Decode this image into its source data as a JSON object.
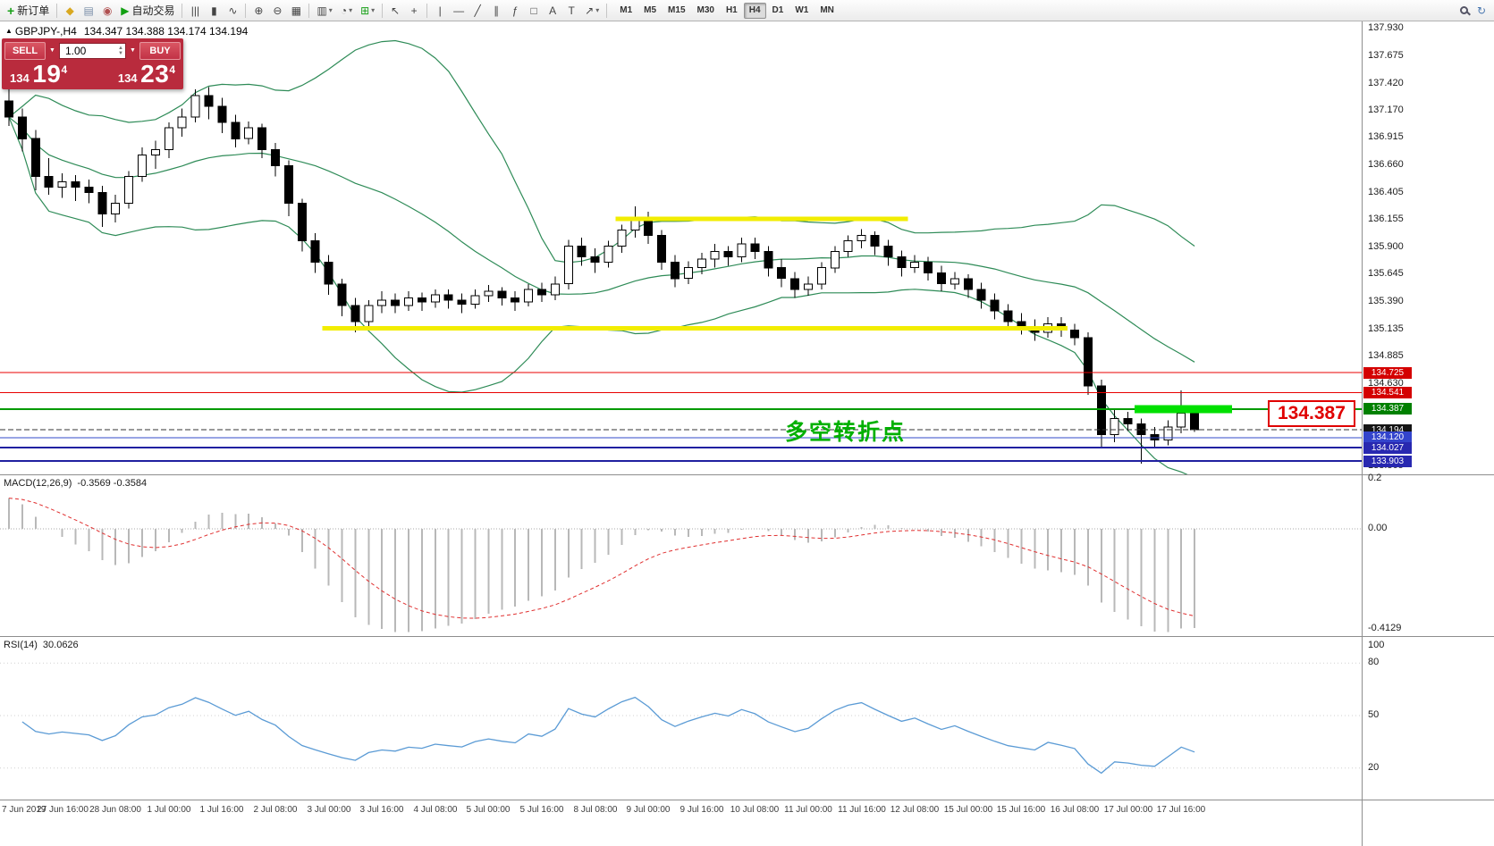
{
  "toolbar": {
    "caret_icon": "▾",
    "items": [
      {
        "name": "new-order-button",
        "icon": "+",
        "icon_color": "#18a018",
        "icon_bold": true,
        "label": "新订单"
      },
      {
        "name": "sep1",
        "sep": true
      },
      {
        "name": "marketwatch-button",
        "icon": "◆",
        "icon_color": "#d9a820"
      },
      {
        "name": "data-window-button",
        "icon": "▤",
        "icon_color": "#7a8ea8"
      },
      {
        "name": "navigator-button",
        "icon": "◉",
        "icon_color": "#b05050"
      },
      {
        "name": "autotrading-button",
        "icon": "▶",
        "icon_color": "#12a012",
        "label": "自动交易"
      },
      {
        "name": "sep2",
        "sep": true
      },
      {
        "name": "bars-chart-button",
        "icon": "|||"
      },
      {
        "name": "candles-chart-button",
        "icon": "▮"
      },
      {
        "name": "line-chart-button",
        "icon": "∿"
      },
      {
        "name": "sep3",
        "sep": true
      },
      {
        "name": "zoom-in-button",
        "icon": "⊕"
      },
      {
        "name": "zoom-out-button",
        "icon": "⊖"
      },
      {
        "name": "tile-windows-button",
        "icon": "▦"
      },
      {
        "name": "sep4",
        "sep": true
      },
      {
        "name": "new-chart-button",
        "icon": "▥",
        "caret": true
      },
      {
        "name": "profiles-button",
        "icon": "◔",
        "caret": true
      },
      {
        "name": "indicators-button",
        "icon": "⊞",
        "icon_color": "#18a018",
        "caret": true
      },
      {
        "name": "sep5",
        "sep": true
      },
      {
        "name": "cursor-button",
        "icon": "↖"
      },
      {
        "name": "crosshair-button",
        "icon": "+"
      },
      {
        "name": "sep6",
        "sep": true
      },
      {
        "name": "vertical-line-button",
        "icon": "|"
      },
      {
        "name": "horizontal-line-button",
        "icon": "—"
      },
      {
        "name": "trendline-button",
        "icon": "╱"
      },
      {
        "name": "channel-button",
        "icon": "∥"
      },
      {
        "name": "fibonacci-button",
        "icon": "ƒ"
      },
      {
        "name": "shapes-button",
        "icon": "□"
      },
      {
        "name": "text-button",
        "icon": "A"
      },
      {
        "name": "label-button",
        "icon": "T"
      },
      {
        "name": "arrows-button",
        "icon": "↗",
        "caret": true
      },
      {
        "name": "sep7",
        "sep": true
      }
    ],
    "timeframes": [
      "M1",
      "M5",
      "M15",
      "M30",
      "H1",
      "H4",
      "D1",
      "W1",
      "MN"
    ],
    "active_timeframe": "H4",
    "right_items": [
      {
        "name": "search-button",
        "icon_css": "mag"
      },
      {
        "name": "community-button",
        "icon": "↻",
        "icon_color": "#4a78b0"
      }
    ]
  },
  "symbol_bar": {
    "direction_icon": "▲",
    "symbol": "GBPJPY-,H4",
    "ohlc": "134.347 134.388 134.174 134.194"
  },
  "trade_panel": {
    "sell_label": "SELL",
    "buy_label": "BUY",
    "caret_icon": "▼",
    "spin_up_icon": "▲",
    "spin_down_icon": "▼",
    "volume": "1.00",
    "sell_price": {
      "prefix": "134 ",
      "big": "19",
      "pip": "4"
    },
    "buy_price": {
      "prefix": "134 ",
      "big": "23",
      "pip": "4"
    }
  },
  "chart_data": {
    "type": "candlestick",
    "symbol": "GBPJPY-",
    "timeframe": "H4",
    "price_axis": {
      "max": 137.99,
      "min": 133.779,
      "ticks": [
        "137.930",
        "137.675",
        "137.420",
        "137.170",
        "136.915",
        "136.660",
        "136.405",
        "136.155",
        "135.900",
        "135.645",
        "135.390",
        "135.135",
        "134.885",
        "134.630",
        "134.375",
        "134.120",
        "133.865"
      ]
    },
    "time_labels": [
      "7 Jun 2019",
      "27 Jun 16:00",
      "28 Jun 08:00",
      "1 Jul 00:00",
      "1 Jul 16:00",
      "2 Jul 08:00",
      "3 Jul 00:00",
      "3 Jul 16:00",
      "4 Jul 08:00",
      "5 Jul 00:00",
      "5 Jul 16:00",
      "8 Jul 08:00",
      "9 Jul 00:00",
      "9 Jul 16:00",
      "10 Jul 08:00",
      "11 Jul 00:00",
      "11 Jul 16:00",
      "12 Jul 08:00",
      "15 Jul 00:00",
      "15 Jul 16:00",
      "16 Jul 08:00",
      "17 Jul 00:00",
      "17 Jul 16:00"
    ],
    "candles": [
      [
        137.25,
        137.42,
        137.02,
        137.1
      ],
      [
        137.1,
        137.18,
        136.78,
        136.9
      ],
      [
        136.9,
        136.98,
        136.42,
        136.55
      ],
      [
        136.55,
        136.72,
        136.38,
        136.45
      ],
      [
        136.45,
        136.58,
        136.35,
        136.5
      ],
      [
        136.5,
        136.56,
        136.32,
        136.45
      ],
      [
        136.45,
        136.52,
        136.3,
        136.4
      ],
      [
        136.4,
        136.46,
        136.08,
        136.2
      ],
      [
        136.2,
        136.38,
        136.12,
        136.3
      ],
      [
        136.3,
        136.6,
        136.25,
        136.55
      ],
      [
        136.55,
        136.82,
        136.5,
        136.75
      ],
      [
        136.75,
        136.88,
        136.62,
        136.8
      ],
      [
        136.8,
        137.05,
        136.72,
        137.0
      ],
      [
        137.0,
        137.18,
        136.92,
        137.1
      ],
      [
        137.1,
        137.36,
        137.05,
        137.3
      ],
      [
        137.3,
        137.38,
        137.08,
        137.2
      ],
      [
        137.2,
        137.28,
        136.95,
        137.05
      ],
      [
        137.05,
        137.12,
        136.82,
        136.9
      ],
      [
        136.9,
        137.06,
        136.85,
        137.0
      ],
      [
        137.0,
        137.04,
        136.72,
        136.8
      ],
      [
        136.8,
        136.86,
        136.55,
        136.65
      ],
      [
        136.65,
        136.7,
        136.18,
        136.3
      ],
      [
        136.3,
        136.34,
        135.85,
        135.95
      ],
      [
        135.95,
        136.02,
        135.65,
        135.75
      ],
      [
        135.75,
        135.82,
        135.45,
        135.55
      ],
      [
        135.55,
        135.6,
        135.25,
        135.35
      ],
      [
        135.35,
        135.42,
        135.1,
        135.2
      ],
      [
        135.2,
        135.4,
        135.15,
        135.35
      ],
      [
        135.35,
        135.48,
        135.28,
        135.4
      ],
      [
        135.4,
        135.46,
        135.28,
        135.35
      ],
      [
        135.35,
        135.48,
        135.3,
        135.42
      ],
      [
        135.42,
        135.47,
        135.3,
        135.38
      ],
      [
        135.38,
        135.5,
        135.33,
        135.45
      ],
      [
        135.45,
        135.5,
        135.32,
        135.4
      ],
      [
        135.4,
        135.46,
        135.28,
        135.36
      ],
      [
        135.36,
        135.5,
        135.32,
        135.44
      ],
      [
        135.44,
        135.54,
        135.38,
        135.48
      ],
      [
        135.48,
        135.52,
        135.35,
        135.42
      ],
      [
        135.42,
        135.48,
        135.3,
        135.38
      ],
      [
        135.38,
        135.55,
        135.34,
        135.5
      ],
      [
        135.5,
        135.56,
        135.38,
        135.45
      ],
      [
        135.45,
        135.62,
        135.4,
        135.55
      ],
      [
        135.55,
        135.96,
        135.5,
        135.9
      ],
      [
        135.9,
        135.98,
        135.72,
        135.8
      ],
      [
        135.8,
        135.88,
        135.65,
        135.75
      ],
      [
        135.75,
        135.95,
        135.7,
        135.9
      ],
      [
        135.9,
        136.1,
        135.84,
        136.05
      ],
      [
        136.05,
        136.27,
        135.98,
        136.15
      ],
      [
        136.15,
        136.22,
        135.92,
        136.0
      ],
      [
        136.0,
        136.05,
        135.68,
        135.75
      ],
      [
        135.75,
        135.82,
        135.52,
        135.6
      ],
      [
        135.6,
        135.76,
        135.55,
        135.7
      ],
      [
        135.7,
        135.84,
        135.64,
        135.78
      ],
      [
        135.78,
        135.92,
        135.7,
        135.85
      ],
      [
        135.85,
        135.9,
        135.72,
        135.8
      ],
      [
        135.8,
        135.98,
        135.75,
        135.92
      ],
      [
        135.92,
        135.98,
        135.78,
        135.85
      ],
      [
        135.85,
        135.9,
        135.62,
        135.7
      ],
      [
        135.7,
        135.78,
        135.52,
        135.6
      ],
      [
        135.6,
        135.66,
        135.42,
        135.5
      ],
      [
        135.5,
        135.62,
        135.44,
        135.55
      ],
      [
        135.55,
        135.75,
        135.5,
        135.7
      ],
      [
        135.7,
        135.9,
        135.65,
        135.85
      ],
      [
        135.85,
        136.0,
        135.8,
        135.95
      ],
      [
        135.95,
        136.06,
        135.88,
        136.0
      ],
      [
        136.0,
        136.04,
        135.82,
        135.9
      ],
      [
        135.9,
        135.96,
        135.72,
        135.8
      ],
      [
        135.8,
        135.86,
        135.62,
        135.7
      ],
      [
        135.7,
        135.82,
        135.65,
        135.75
      ],
      [
        135.75,
        135.8,
        135.58,
        135.65
      ],
      [
        135.65,
        135.72,
        135.48,
        135.55
      ],
      [
        135.55,
        135.66,
        135.5,
        135.6
      ],
      [
        135.6,
        135.64,
        135.42,
        135.5
      ],
      [
        135.5,
        135.56,
        135.32,
        135.4
      ],
      [
        135.4,
        135.46,
        135.22,
        135.3
      ],
      [
        135.3,
        135.36,
        135.12,
        135.2
      ],
      [
        135.2,
        135.28,
        135.08,
        135.15
      ],
      [
        135.15,
        135.22,
        135.02,
        135.1
      ],
      [
        135.1,
        135.24,
        135.05,
        135.18
      ],
      [
        135.18,
        135.24,
        135.06,
        135.12
      ],
      [
        135.12,
        135.18,
        134.98,
        135.05
      ],
      [
        135.05,
        135.1,
        134.52,
        134.6
      ],
      [
        134.6,
        134.66,
        134.02,
        134.15
      ],
      [
        134.15,
        134.38,
        134.08,
        134.3
      ],
      [
        134.3,
        134.36,
        134.18,
        134.25
      ],
      [
        134.25,
        134.3,
        133.88,
        134.15
      ],
      [
        134.15,
        134.22,
        134.02,
        134.1
      ],
      [
        134.1,
        134.28,
        134.05,
        134.22
      ],
      [
        134.22,
        134.56,
        134.16,
        134.35
      ],
      [
        134.347,
        134.388,
        134.174,
        134.194
      ]
    ],
    "bollinger": {
      "period": 20,
      "deviation": 2,
      "color": "#2e8b57"
    },
    "hlines": [
      {
        "price": 136.155,
        "color": "#f2ed00",
        "width": 5,
        "i1": 46,
        "i2": 67
      },
      {
        "price": 135.135,
        "color": "#f2ed00",
        "width": 5,
        "i1": 24,
        "i2": 79
      },
      {
        "price": 134.725,
        "color": "#e80000",
        "width": 1,
        "full": true
      },
      {
        "price": 134.541,
        "color": "#e80000",
        "width": 1,
        "full": true
      },
      {
        "price": 134.387,
        "color": "#009a00",
        "width": 2,
        "full": true
      },
      {
        "price": 134.12,
        "color": "#3048c8",
        "width": 1,
        "full": true
      },
      {
        "price": 134.027,
        "color": "#2020a0",
        "width": 2,
        "full": true
      },
      {
        "price": 133.903,
        "color": "#2020a0",
        "width": 2,
        "full": true
      }
    ],
    "current_price_line": {
      "price": 134.194,
      "color": "#333333"
    },
    "highlight_segment": {
      "price": 134.387,
      "i1": 84.5,
      "i2": 91.8,
      "color": "#00e000"
    },
    "price_badges": [
      {
        "text": "134.725",
        "bg": "#d40000"
      },
      {
        "text": "134.541",
        "bg": "#d40000"
      },
      {
        "text": "134.387",
        "bg": "#008000"
      },
      {
        "text": "134.194",
        "bg": "#151515"
      },
      {
        "text": "134.120",
        "bg": "#3344cc"
      },
      {
        "text": "134.027",
        "bg": "#2828b0"
      },
      {
        "text": "133.903",
        "bg": "#2828b0"
      }
    ],
    "annotation": {
      "text": "多空转折点",
      "color": "#00b000"
    },
    "price_callout": {
      "text": "134.387",
      "color": "#e00000"
    },
    "macd": {
      "name": "MACD(12,26,9)",
      "values_text": "-0.3569 -0.3584",
      "display_min": -0.4129,
      "scale_labels": [
        "0.2",
        "0.00",
        "-0.4129"
      ],
      "histogram_color": "#b8b8b8",
      "signal_color": "#e03030"
    },
    "rsi": {
      "name": "RSI(14)",
      "value_text": "30.0626",
      "scale_labels": [
        "100",
        "80",
        "50",
        "20"
      ],
      "line_color": "#5b9bd5"
    }
  }
}
